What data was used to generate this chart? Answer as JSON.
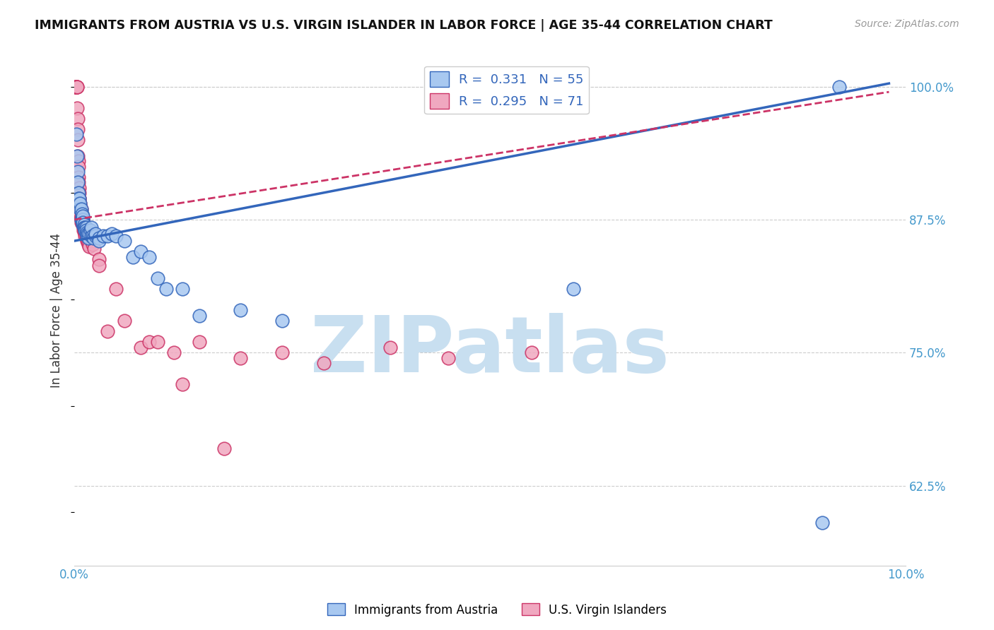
{
  "title": "IMMIGRANTS FROM AUSTRIA VS U.S. VIRGIN ISLANDER IN LABOR FORCE | AGE 35-44 CORRELATION CHART",
  "source": "Source: ZipAtlas.com",
  "ylabel": "In Labor Force | Age 35-44",
  "xlim": [
    0.0,
    0.1
  ],
  "ylim": [
    0.55,
    1.03
  ],
  "xticks": [
    0.0,
    0.02,
    0.04,
    0.06,
    0.08,
    0.1
  ],
  "xticklabels": [
    "0.0%",
    "",
    "",
    "",
    "",
    "10.0%"
  ],
  "yticks_right": [
    0.625,
    0.75,
    0.875,
    1.0
  ],
  "yticklabels_right": [
    "62.5%",
    "75.0%",
    "87.5%",
    "100.0%"
  ],
  "blue_R": 0.331,
  "blue_N": 55,
  "pink_R": 0.295,
  "pink_N": 71,
  "blue_color": "#a8c8f0",
  "pink_color": "#f0a8c0",
  "blue_line_color": "#3366bb",
  "pink_line_color": "#cc3366",
  "watermark": "ZIPatlas",
  "watermark_color": "#c8dff0",
  "blue_trend_x0": 0.0,
  "blue_trend_y0": 0.855,
  "blue_trend_x1": 0.098,
  "blue_trend_y1": 1.003,
  "pink_trend_x0": 0.0,
  "pink_trend_y0": 0.875,
  "pink_trend_x1": 0.098,
  "pink_trend_y1": 0.995,
  "blue_scatter_x": [
    0.0002,
    0.0003,
    0.0004,
    0.0004,
    0.0005,
    0.0005,
    0.0006,
    0.0006,
    0.0007,
    0.0007,
    0.0008,
    0.0008,
    0.0009,
    0.0009,
    0.001,
    0.001,
    0.001,
    0.001,
    0.0012,
    0.0012,
    0.0013,
    0.0013,
    0.0014,
    0.0014,
    0.0015,
    0.0015,
    0.0016,
    0.0017,
    0.0018,
    0.0019,
    0.002,
    0.002,
    0.0022,
    0.0023,
    0.0025,
    0.0025,
    0.003,
    0.003,
    0.0035,
    0.004,
    0.0045,
    0.005,
    0.006,
    0.007,
    0.008,
    0.009,
    0.01,
    0.011,
    0.013,
    0.015,
    0.02,
    0.025,
    0.06,
    0.09,
    0.092
  ],
  "blue_scatter_y": [
    0.955,
    0.935,
    0.92,
    0.91,
    0.9,
    0.895,
    0.89,
    0.895,
    0.885,
    0.89,
    0.885,
    0.875,
    0.88,
    0.875,
    0.875,
    0.87,
    0.878,
    0.872,
    0.87,
    0.868,
    0.868,
    0.865,
    0.868,
    0.865,
    0.863,
    0.86,
    0.862,
    0.858,
    0.862,
    0.865,
    0.86,
    0.868,
    0.86,
    0.858,
    0.86,
    0.862,
    0.858,
    0.855,
    0.86,
    0.86,
    0.862,
    0.86,
    0.855,
    0.84,
    0.845,
    0.84,
    0.82,
    0.81,
    0.81,
    0.785,
    0.79,
    0.78,
    0.81,
    0.59,
    1.0
  ],
  "pink_scatter_x": [
    0.0001,
    0.0001,
    0.0002,
    0.0002,
    0.0002,
    0.0003,
    0.0003,
    0.0003,
    0.0004,
    0.0004,
    0.0004,
    0.0004,
    0.0005,
    0.0005,
    0.0005,
    0.0005,
    0.0006,
    0.0006,
    0.0006,
    0.0006,
    0.0007,
    0.0007,
    0.0007,
    0.0007,
    0.0008,
    0.0008,
    0.0008,
    0.0008,
    0.0009,
    0.0009,
    0.0009,
    0.001,
    0.001,
    0.001,
    0.001,
    0.0011,
    0.0011,
    0.0012,
    0.0012,
    0.0013,
    0.0013,
    0.0014,
    0.0014,
    0.0015,
    0.0015,
    0.0016,
    0.0016,
    0.0017,
    0.0018,
    0.002,
    0.002,
    0.0022,
    0.0024,
    0.003,
    0.003,
    0.004,
    0.005,
    0.006,
    0.008,
    0.009,
    0.01,
    0.012,
    0.013,
    0.015,
    0.018,
    0.02,
    0.025,
    0.03,
    0.038,
    0.045,
    0.055
  ],
  "pink_scatter_y": [
    1.0,
    1.0,
    1.0,
    1.0,
    1.0,
    1.0,
    1.0,
    0.98,
    0.97,
    0.96,
    0.95,
    0.935,
    0.93,
    0.925,
    0.915,
    0.91,
    0.905,
    0.9,
    0.895,
    0.895,
    0.89,
    0.888,
    0.885,
    0.88,
    0.885,
    0.878,
    0.875,
    0.872,
    0.878,
    0.875,
    0.872,
    0.875,
    0.872,
    0.87,
    0.875,
    0.868,
    0.865,
    0.868,
    0.865,
    0.862,
    0.86,
    0.862,
    0.86,
    0.858,
    0.855,
    0.858,
    0.855,
    0.852,
    0.85,
    0.858,
    0.855,
    0.852,
    0.848,
    0.838,
    0.832,
    0.77,
    0.81,
    0.78,
    0.755,
    0.76,
    0.76,
    0.75,
    0.72,
    0.76,
    0.66,
    0.745,
    0.75,
    0.74,
    0.755,
    0.745,
    0.75
  ]
}
